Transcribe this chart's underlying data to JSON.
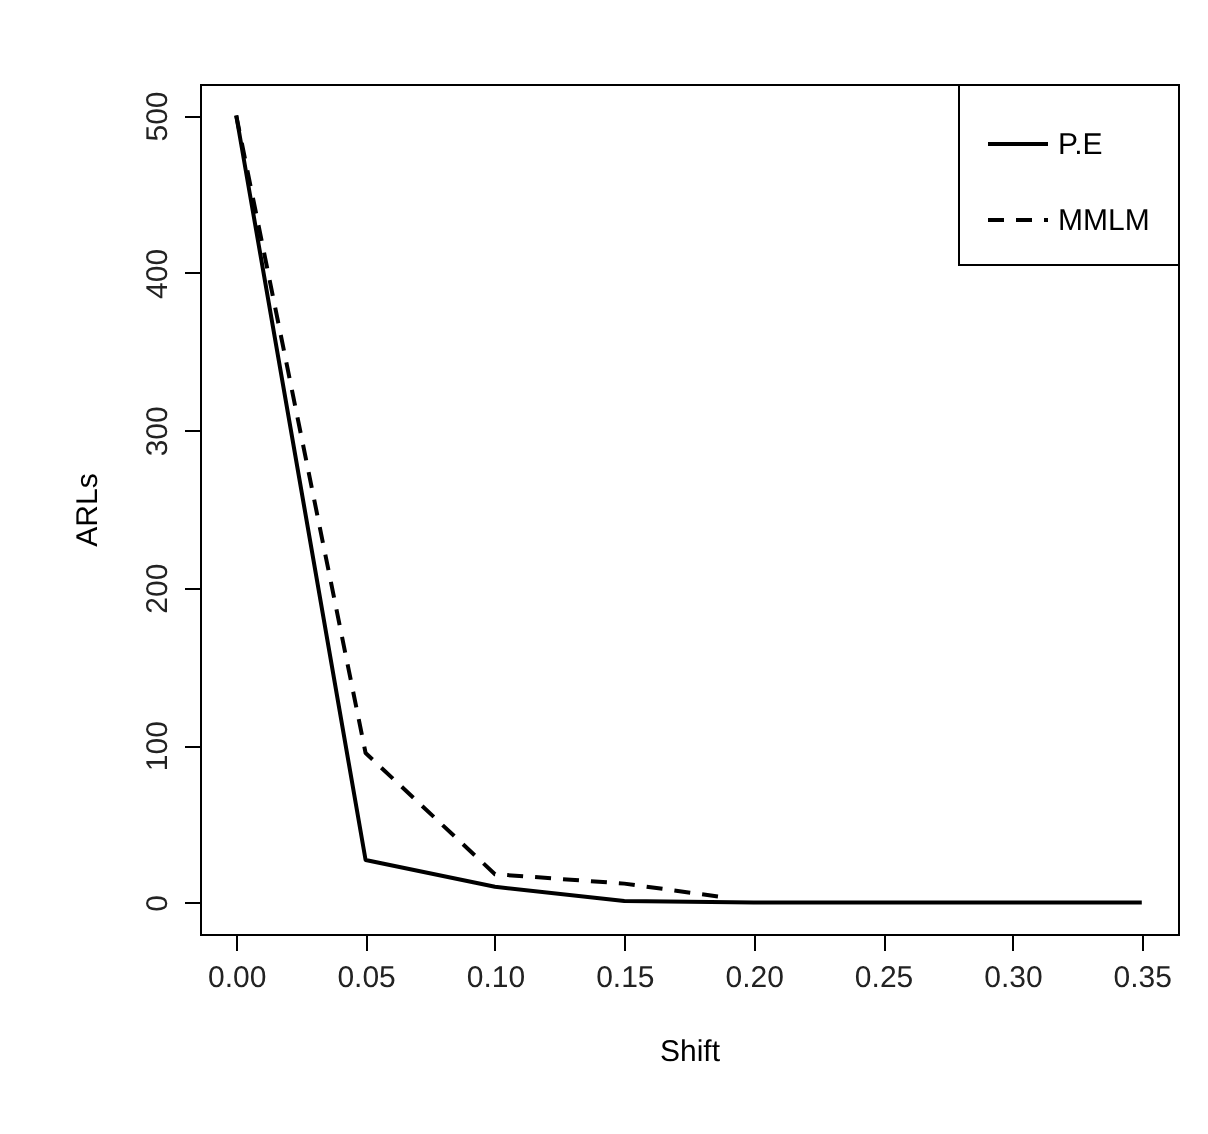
{
  "chart_data": {
    "type": "line",
    "xlabel": "Shift",
    "ylabel": "ARLs",
    "xlim": [
      -0.014,
      0.364
    ],
    "xticks": [
      {
        "value": 0,
        "label": "0.00"
      },
      0.05,
      {
        "value": 0.1,
        "label": "0.10"
      },
      0.15,
      {
        "value": 0.2,
        "label": "0.20"
      },
      0.25,
      {
        "value": 0.3,
        "label": "0.30"
      },
      0.35
    ],
    "ylim": [
      -20,
      520
    ],
    "yticks": [
      0,
      100,
      200,
      300,
      400,
      500
    ],
    "legend": "top right",
    "series": [
      {
        "name": "P.E",
        "color": "#000000",
        "line_style": "solid",
        "x": [
          0,
          0.05,
          0.1,
          0.15,
          0.2,
          0.25,
          0.3,
          0.35
        ],
        "values": [
          500,
          27,
          10,
          1,
          0,
          0,
          0,
          0
        ]
      },
      {
        "name": "MMLM",
        "color": "#000000",
        "line_style": "dashed",
        "x": [
          0,
          0.05,
          0.1,
          0.15,
          0.19
        ],
        "values": [
          500,
          95,
          18,
          12,
          3
        ]
      }
    ]
  }
}
